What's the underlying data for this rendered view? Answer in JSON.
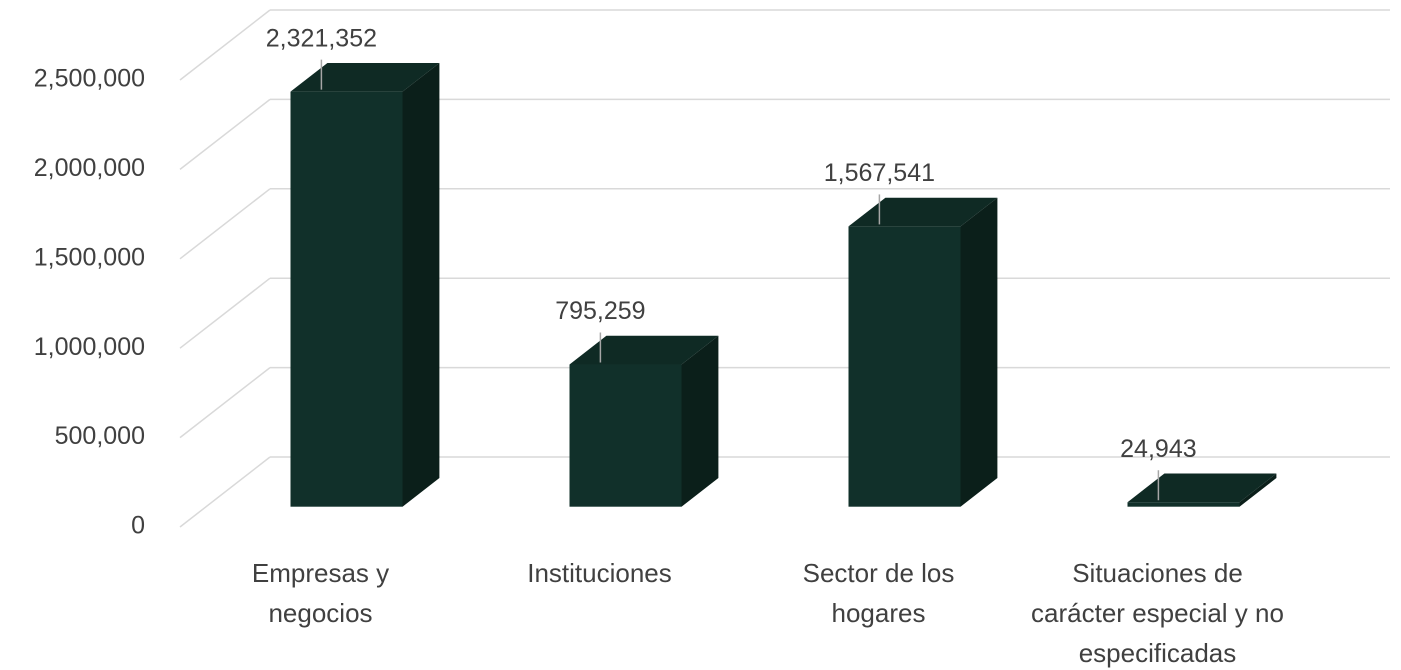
{
  "chart_data": {
    "type": "bar3d",
    "categories": [
      "Empresas y negocios",
      "Instituciones",
      "Sector de los hogares",
      "Situaciones de carácter especial y no especificadas"
    ],
    "values": [
      2321352,
      795259,
      1567541,
      24943
    ],
    "value_labels": [
      "2,321,352",
      "795,259",
      "1,567,541",
      "24,943"
    ],
    "color": "#11302a",
    "ylim": [
      0,
      2500000
    ],
    "yticks": [
      0,
      {
        "value": 500000,
        "label": "500,000"
      },
      {
        "value": 1000000,
        "label": "1,000,000"
      },
      {
        "value": 1500000,
        "label": "1,500,000"
      },
      {
        "value": 2000000,
        "label": "2,000,000"
      },
      {
        "value": 2500000,
        "label": "2,500,000"
      }
    ],
    "grid": true
  }
}
